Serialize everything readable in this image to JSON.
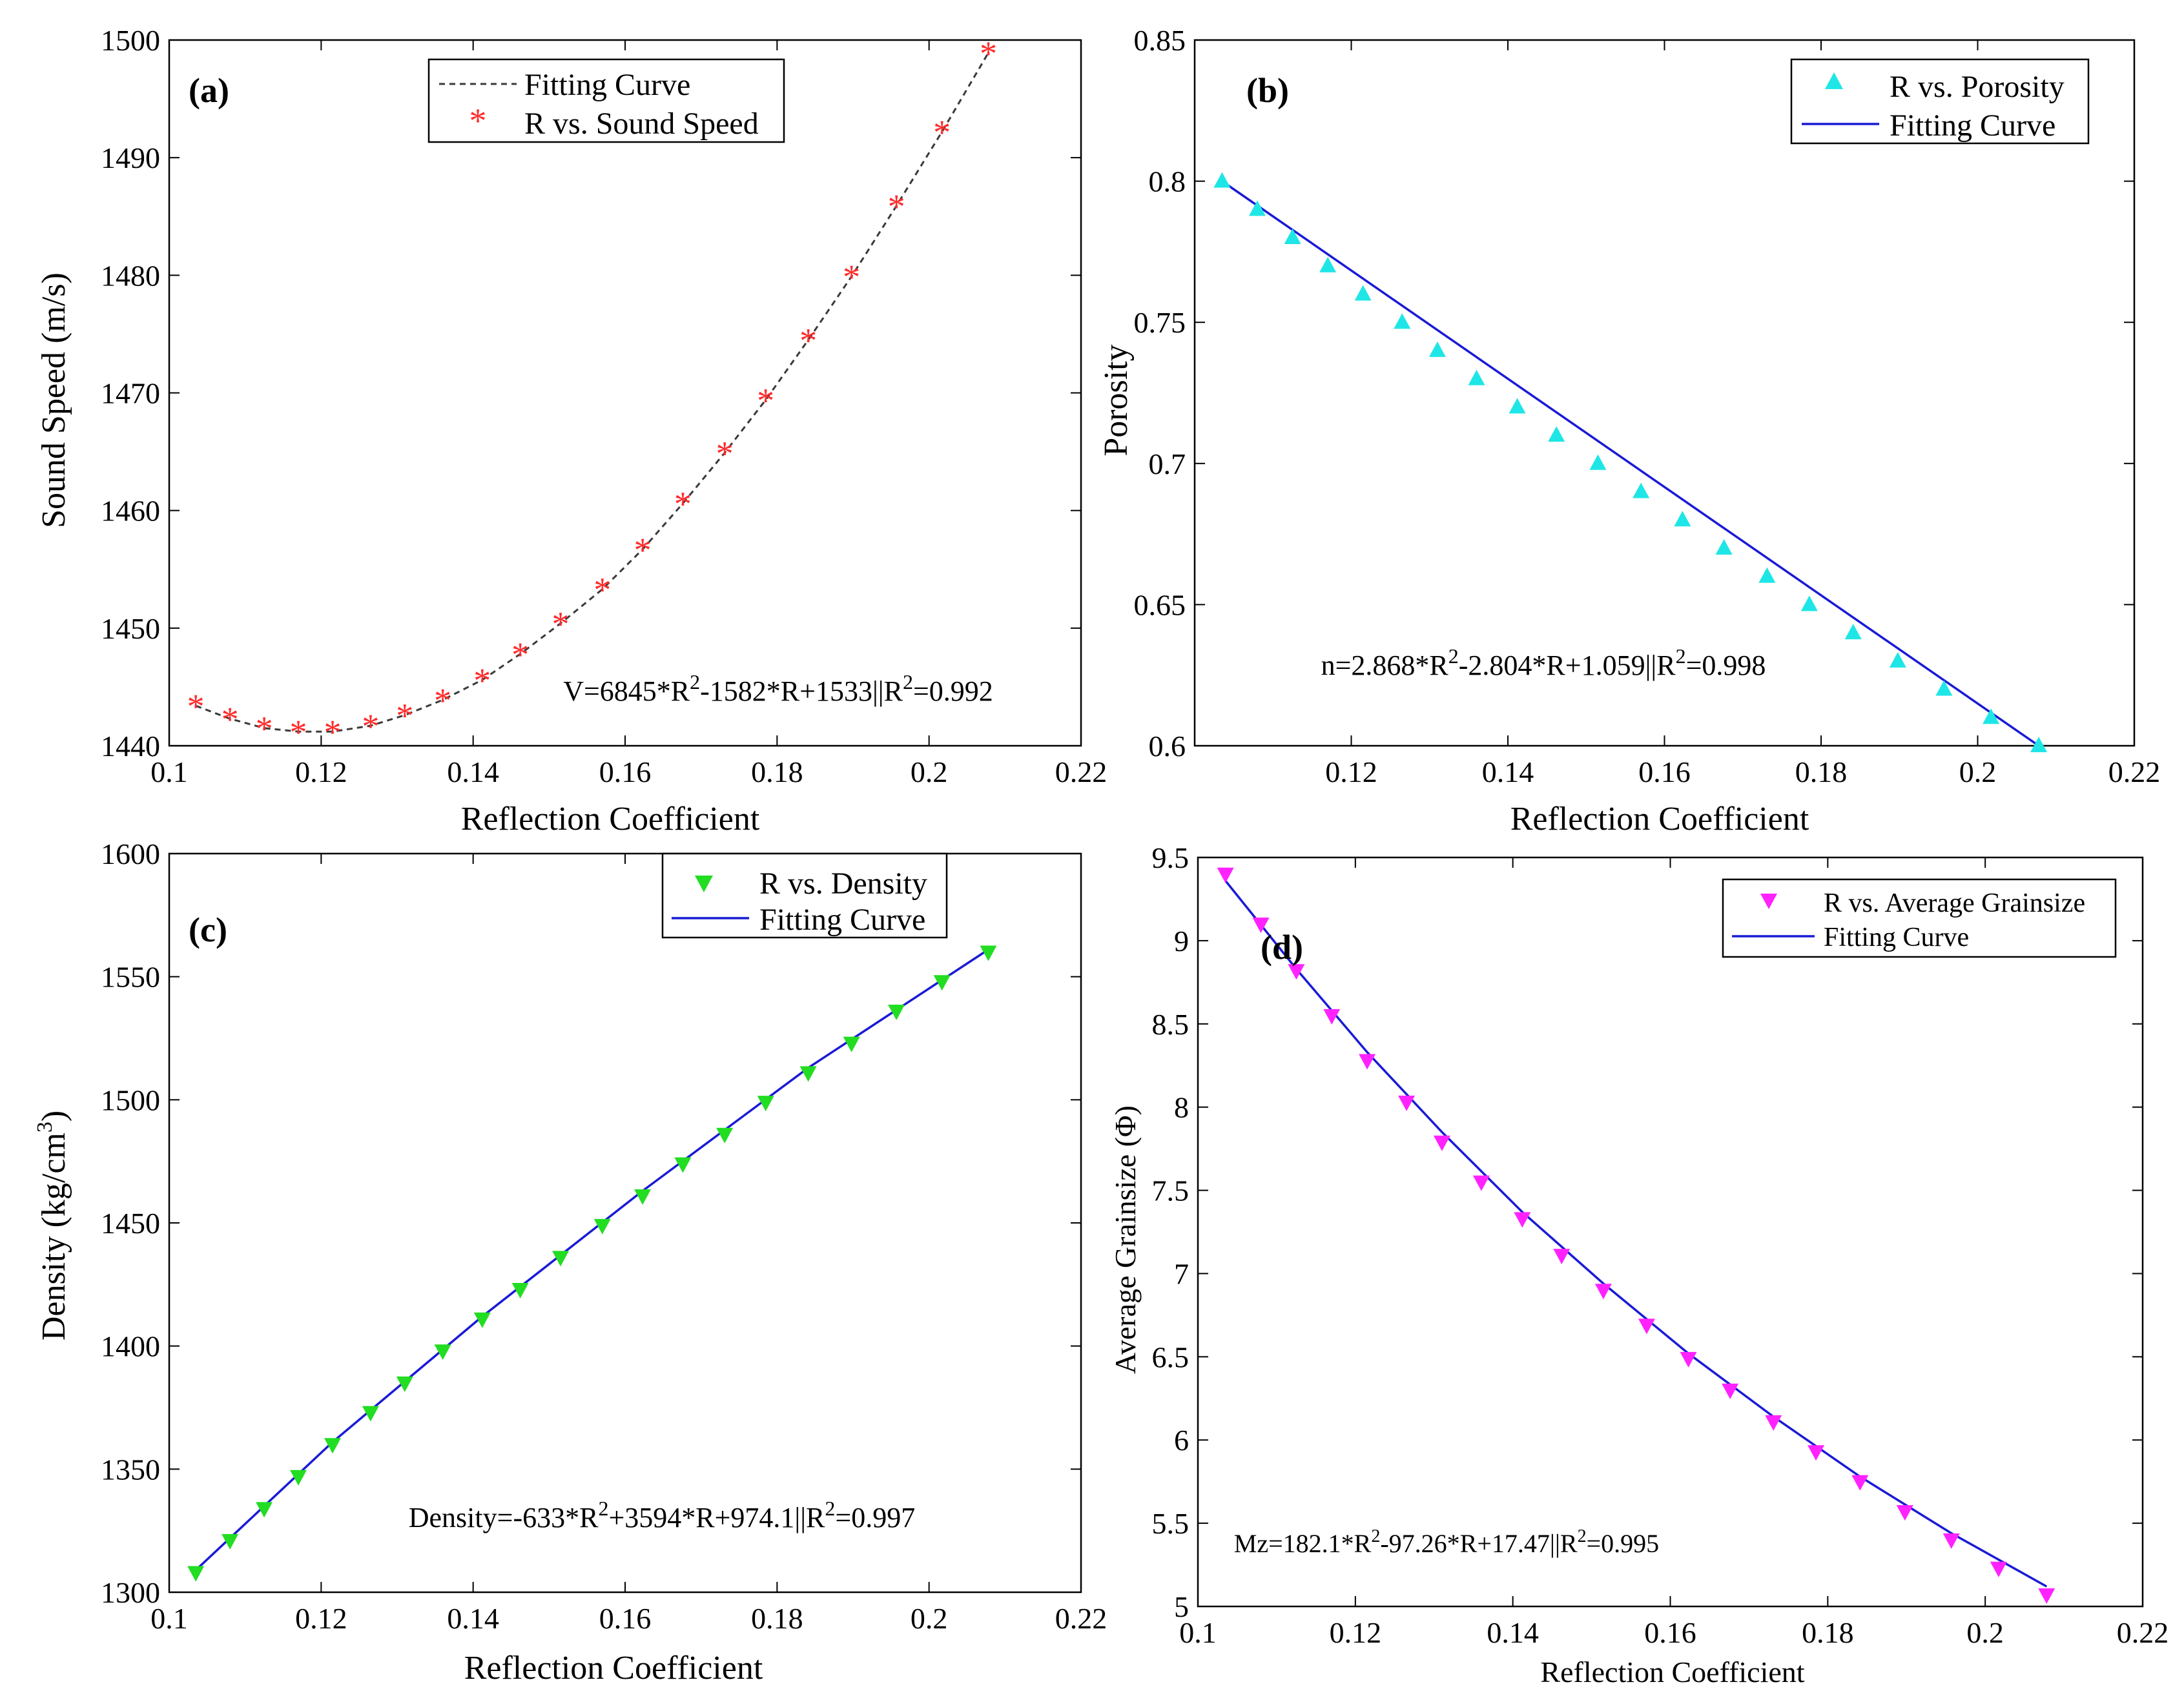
{
  "figure": {
    "panels": [
      "a",
      "b",
      "c",
      "d"
    ]
  },
  "chart_data": [
    {
      "id": "a",
      "type": "scatter",
      "panel_label": "(a)",
      "xlabel": "Reflection Coefficient",
      "ylabel": "Sound Speed (m/s)",
      "xlim": [
        0.1,
        0.22
      ],
      "ylim": [
        1440,
        1500
      ],
      "xticks": [
        0.1,
        0.12,
        0.14,
        0.16,
        0.18,
        0.2,
        0.22
      ],
      "yticks": [
        1440,
        1450,
        1460,
        1470,
        1480,
        1490,
        1500
      ],
      "xtick_labels": [
        "0.1",
        "0.12",
        "0.14",
        "0.16",
        "0.18",
        "0.2",
        "0.22"
      ],
      "ytick_labels": [
        "1440",
        "1450",
        "1460",
        "1470",
        "1480",
        "1490",
        "1500"
      ],
      "x": [
        0.1035,
        0.108,
        0.1125,
        0.117,
        0.1215,
        0.1265,
        0.131,
        0.136,
        0.1412,
        0.1462,
        0.1515,
        0.157,
        0.1623,
        0.1676,
        0.1731,
        0.1785,
        0.1841,
        0.1898,
        0.1957,
        0.2017,
        0.2078
      ],
      "y": [
        1443.4,
        1442.3,
        1441.5,
        1441.2,
        1441.2,
        1441.7,
        1442.6,
        1443.9,
        1445.6,
        1447.8,
        1450.4,
        1453.3,
        1456.7,
        1460.6,
        1464.9,
        1469.4,
        1474.5,
        1479.9,
        1485.9,
        1492.2,
        1498.9
      ],
      "marker": "asterisk",
      "marker_color": "#ff2a2a",
      "series_name": "R vs. Sound Speed",
      "fit": {
        "name": "Fitting Curve",
        "color": "#3a3a3a",
        "style": "dashed",
        "x": [
          0.1035,
          0.108,
          0.1125,
          0.117,
          0.1215,
          0.1265,
          0.131,
          0.136,
          0.1412,
          0.1462,
          0.1515,
          0.157,
          0.1623,
          0.1676,
          0.1731,
          0.1785,
          0.1841,
          0.1898,
          0.1957,
          0.2017,
          0.2078
        ],
        "y": [
          1443.4,
          1442.3,
          1441.5,
          1441.2,
          1441.2,
          1441.7,
          1442.6,
          1443.9,
          1445.6,
          1447.8,
          1450.4,
          1453.3,
          1456.7,
          1460.6,
          1464.9,
          1469.4,
          1474.5,
          1479.9,
          1485.9,
          1492.2,
          1498.9
        ]
      },
      "legend": {
        "placement": "top-center",
        "entries": [
          "Fitting Curve",
          "R vs. Sound Speed"
        ]
      },
      "equation": {
        "main": "V=6845*R",
        "sup1": "2",
        "mid": "-1582*R+1533||R",
        "sup2": "2",
        "tail": "=0.992"
      }
    },
    {
      "id": "b",
      "type": "scatter",
      "panel_label": "(b)",
      "xlabel": "Reflection Coefficient",
      "ylabel": "Porosity",
      "xlim": [
        0.1,
        0.22
      ],
      "ylim": [
        0.6,
        0.85
      ],
      "xticks": [
        0.12,
        0.14,
        0.16,
        0.18,
        0.2,
        0.22
      ],
      "yticks": [
        0.6,
        0.65,
        0.7,
        0.75,
        0.8,
        0.85
      ],
      "xtick_labels": [
        "0.12",
        "0.14",
        "0.16",
        "0.18",
        "0.2",
        "0.22"
      ],
      "ytick_labels": [
        "0.6",
        "0.65",
        "0.7",
        "0.75",
        "0.8",
        "0.85"
      ],
      "x": [
        0.1035,
        0.108,
        0.1125,
        0.117,
        0.1215,
        0.1265,
        0.131,
        0.136,
        0.1412,
        0.1462,
        0.1515,
        0.157,
        0.1623,
        0.1676,
        0.1731,
        0.1785,
        0.1841,
        0.1898,
        0.1957,
        0.2017,
        0.2078
      ],
      "y": [
        0.8,
        0.79,
        0.78,
        0.77,
        0.76,
        0.75,
        0.74,
        0.73,
        0.72,
        0.71,
        0.7,
        0.69,
        0.68,
        0.67,
        0.66,
        0.65,
        0.64,
        0.63,
        0.62,
        0.61,
        0.6
      ],
      "marker": "triangle-up",
      "marker_color": "#1fe6e6",
      "series_name": "R vs. Porosity",
      "fit": {
        "name": "Fitting Curve",
        "color": "#1a1ad6",
        "style": "solid",
        "x": [
          0.1035,
          0.2078
        ],
        "y": [
          0.8,
          0.6
        ]
      },
      "legend": {
        "placement": "top-right",
        "entries": [
          "R vs. Porosity",
          "Fitting Curve"
        ]
      },
      "equation": {
        "main": "n=2.868*R",
        "sup1": "2",
        "mid": "-2.804*R+1.059||R",
        "sup2": "2",
        "tail": "=0.998"
      }
    },
    {
      "id": "c",
      "type": "scatter",
      "panel_label": "(c)",
      "xlabel": "Reflection Coefficient",
      "ylabel": "Density (kg/cm",
      "ylabel_sup": "3",
      "ylabel_tail": ")",
      "xlim": [
        0.1,
        0.22
      ],
      "ylim": [
        1300,
        1600
      ],
      "xticks": [
        0.1,
        0.12,
        0.14,
        0.16,
        0.18,
        0.2,
        0.22
      ],
      "yticks": [
        1300,
        1350,
        1400,
        1450,
        1500,
        1550,
        1600
      ],
      "xtick_labels": [
        "0.1",
        "0.12",
        "0.14",
        "0.16",
        "0.18",
        "0.2",
        "0.22"
      ],
      "ytick_labels": [
        "1300",
        "1350",
        "1400",
        "1450",
        "1500",
        "1550",
        "1600"
      ],
      "x": [
        0.1035,
        0.108,
        0.1125,
        0.117,
        0.1215,
        0.1265,
        0.131,
        0.136,
        0.1412,
        0.1462,
        0.1515,
        0.157,
        0.1623,
        0.1676,
        0.1731,
        0.1785,
        0.1841,
        0.1898,
        0.1957,
        0.2017,
        0.2078
      ],
      "y": [
        1308,
        1321,
        1334,
        1347,
        1360,
        1373,
        1385,
        1398,
        1411,
        1423,
        1436,
        1449,
        1461,
        1474,
        1486,
        1499,
        1511,
        1523,
        1536,
        1548,
        1560
      ],
      "marker": "triangle-down",
      "marker_color": "#22dd22",
      "series_name": "R vs. Density",
      "fit": {
        "name": "Fitting Curve",
        "color": "#1a1ad6",
        "style": "solid",
        "x": [
          0.1035,
          0.1215,
          0.1412,
          0.1623,
          0.1841,
          0.2078
        ],
        "y": [
          1309,
          1361,
          1412,
          1463,
          1513,
          1561
        ]
      },
      "legend": {
        "placement": "top-right",
        "entries": [
          "R vs. Density",
          "Fitting Curve"
        ]
      },
      "equation": {
        "main": "Density=-633*R",
        "sup1": "2",
        "mid": "+3594*R+974.1||R",
        "sup2": "2",
        "tail": "=0.997"
      }
    },
    {
      "id": "d",
      "type": "scatter",
      "panel_label": "(d)",
      "xlabel": "Reflection Coefficient",
      "ylabel": "Average Grainsize (Φ)",
      "xlim": [
        0.1,
        0.22
      ],
      "ylim": [
        5,
        9.5
      ],
      "xticks": [
        0.1,
        0.12,
        0.14,
        0.16,
        0.18,
        0.2,
        0.22
      ],
      "yticks": [
        5,
        5.5,
        6,
        6.5,
        7,
        7.5,
        8,
        8.5,
        9,
        9.5
      ],
      "xtick_labels": [
        "0.1",
        "0.12",
        "0.14",
        "0.16",
        "0.18",
        "0.2",
        "0.22"
      ],
      "ytick_labels": [
        "5",
        "5.5",
        "6",
        "6.5",
        "7",
        "7.5",
        "8",
        "8.5",
        "9",
        "9.5"
      ],
      "x": [
        0.1035,
        0.108,
        0.1125,
        0.117,
        0.1215,
        0.1265,
        0.131,
        0.136,
        0.1412,
        0.1462,
        0.1515,
        0.157,
        0.1623,
        0.1676,
        0.1731,
        0.1785,
        0.1841,
        0.1898,
        0.1957,
        0.2017,
        0.2078
      ],
      "y": [
        9.4,
        9.1,
        8.82,
        8.55,
        8.28,
        8.03,
        7.79,
        7.55,
        7.33,
        7.11,
        6.9,
        6.69,
        6.49,
        6.3,
        6.11,
        5.93,
        5.75,
        5.57,
        5.4,
        5.23,
        5.07
      ],
      "marker": "triangle-down",
      "marker_color": "#ff22ff",
      "series_name": "R vs. Average Grainsize",
      "fit": {
        "name": "Fitting Curve",
        "color": "#1a1ad6",
        "style": "solid",
        "x": [
          0.1035,
          0.1125,
          0.1215,
          0.131,
          0.1412,
          0.1515,
          0.1623,
          0.1731,
          0.1841,
          0.1957,
          0.2078
        ],
        "y": [
          9.36,
          8.83,
          8.33,
          7.85,
          7.37,
          6.94,
          6.52,
          6.14,
          5.78,
          5.44,
          5.12
        ]
      },
      "legend": {
        "placement": "top-right",
        "entries": [
          "R vs. Average Grainsize",
          "Fitting Curve"
        ]
      },
      "equation": {
        "main": "Mz=182.1*R",
        "sup1": "2",
        "mid": "-97.26*R+17.47||R",
        "sup2": "2",
        "tail": "=0.995"
      }
    }
  ]
}
